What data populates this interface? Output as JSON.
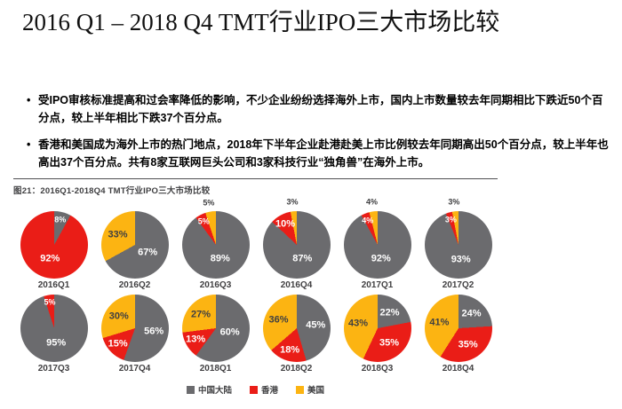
{
  "title": "2016 Q1 – 2018 Q4 TMT行业IPO三大市场比较",
  "bullets": [
    "受IPO审核标准提高和过会率降低的影响，不少企业纷纷选择海外上市，国内上市数量较去年同期相比下跌近50个百分点，较上半年相比下跌37个百分点。",
    "香港和美国成为海外上市的热门地点，2018年下半年企业赴港赴美上市比例较去年同期高出50个百分点，较上半年也高出37个百分点。共有8家互联网巨头公司和3家科技行业“独角兽”在海外上市。"
  ],
  "chart_data": {
    "type": "pie",
    "caption": "图21：2016Q1-2018Q4 TMT行业IPO三大市场比较",
    "series": [
      "中国大陆",
      "香港",
      "美国"
    ],
    "colors": {
      "中国大陆": "#6b6b6e",
      "香港": "#ea1d17",
      "美国": "#fcb412"
    },
    "legend_position": "bottom",
    "unit": "%",
    "pies": [
      {
        "quarter": "2016Q1",
        "values": [
          8,
          92,
          0
        ]
      },
      {
        "quarter": "2016Q2",
        "values": [
          67,
          0,
          33
        ]
      },
      {
        "quarter": "2016Q3",
        "values": [
          89,
          5,
          5
        ]
      },
      {
        "quarter": "2016Q4",
        "values": [
          87,
          10,
          3
        ]
      },
      {
        "quarter": "2017Q1",
        "values": [
          92,
          4,
          4
        ]
      },
      {
        "quarter": "2017Q2",
        "values": [
          93,
          3,
          3
        ]
      },
      {
        "quarter": "2017Q3",
        "values": [
          95,
          5,
          0
        ]
      },
      {
        "quarter": "2017Q4",
        "values": [
          56,
          15,
          30
        ]
      },
      {
        "quarter": "2018Q1",
        "values": [
          60,
          13,
          27
        ]
      },
      {
        "quarter": "2018Q2",
        "values": [
          45,
          18,
          36
        ]
      },
      {
        "quarter": "2018Q3",
        "values": [
          22,
          35,
          43
        ]
      },
      {
        "quarter": "2018Q4",
        "values": [
          24,
          35,
          41
        ]
      }
    ]
  }
}
